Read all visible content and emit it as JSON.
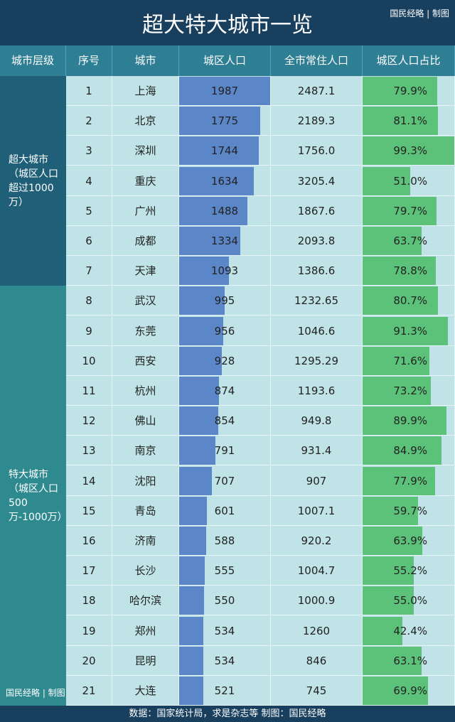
{
  "title": "超大特大城市一览",
  "brand": "国民经略 | 制图",
  "footer": "数据：国家统计局，求是杂志等  制图：国民经略",
  "colors": {
    "header": "#183f5e",
    "column_header": "#2e7e94",
    "tier1": "#1f5f78",
    "tier2": "#2f8a90",
    "urban_bar": "#5b87c8",
    "ratio_bar": "#5cc27a",
    "cell": "#bfe3e6"
  },
  "chart_data": {
    "type": "table",
    "columns": [
      "城市层级",
      "序号",
      "城市",
      "城区人口",
      "全市常住人口",
      "城区人口占比"
    ],
    "tiers": [
      {
        "label": "超大城市（城区人口超过1000万）",
        "rows": [
          1,
          7
        ]
      },
      {
        "label": "特大城市（城区人口500万-1000万）",
        "rows": [
          8,
          21
        ]
      }
    ],
    "rows": [
      {
        "no": "1",
        "city": "上海",
        "urban": "1987",
        "total": "2487.1",
        "ratio": "79.9%"
      },
      {
        "no": "2",
        "city": "北京",
        "urban": "1775",
        "total": "2189.3",
        "ratio": "81.1%"
      },
      {
        "no": "3",
        "city": "深圳",
        "urban": "1744",
        "total": "1756.0",
        "ratio": "99.3%"
      },
      {
        "no": "4",
        "city": "重庆",
        "urban": "1634",
        "total": "3205.4",
        "ratio": "51.0%"
      },
      {
        "no": "5",
        "city": "广州",
        "urban": "1488",
        "total": "1867.6",
        "ratio": "79.7%"
      },
      {
        "no": "6",
        "city": "成都",
        "urban": "1334",
        "total": "2093.8",
        "ratio": "63.7%"
      },
      {
        "no": "7",
        "city": "天津",
        "urban": "1093",
        "total": "1386.6",
        "ratio": "78.8%"
      },
      {
        "no": "8",
        "city": "武汉",
        "urban": "995",
        "total": "1232.65",
        "ratio": "80.7%"
      },
      {
        "no": "9",
        "city": "东莞",
        "urban": "956",
        "total": "1046.6",
        "ratio": "91.3%"
      },
      {
        "no": "10",
        "city": "西安",
        "urban": "928",
        "total": "1295.29",
        "ratio": "71.6%"
      },
      {
        "no": "11",
        "city": "杭州",
        "urban": "874",
        "total": "1193.6",
        "ratio": "73.2%"
      },
      {
        "no": "12",
        "city": "佛山",
        "urban": "854",
        "total": "949.8",
        "ratio": "89.9%"
      },
      {
        "no": "13",
        "city": "南京",
        "urban": "791",
        "total": "931.4",
        "ratio": "84.9%"
      },
      {
        "no": "14",
        "city": "沈阳",
        "urban": "707",
        "total": "907",
        "ratio": "77.9%"
      },
      {
        "no": "15",
        "city": "青岛",
        "urban": "601",
        "total": "1007.1",
        "ratio": "59.7%"
      },
      {
        "no": "16",
        "city": "济南",
        "urban": "588",
        "total": "920.2",
        "ratio": "63.9%"
      },
      {
        "no": "17",
        "city": "长沙",
        "urban": "555",
        "total": "1004.7",
        "ratio": "55.2%"
      },
      {
        "no": "18",
        "city": "哈尔滨",
        "urban": "550",
        "total": "1000.9",
        "ratio": "55.0%"
      },
      {
        "no": "19",
        "city": "郑州",
        "urban": "534",
        "total": "1260",
        "ratio": "42.4%"
      },
      {
        "no": "20",
        "city": "昆明",
        "urban": "534",
        "total": "846",
        "ratio": "63.1%"
      },
      {
        "no": "21",
        "city": "大连",
        "urban": "521",
        "total": "745",
        "ratio": "69.9%"
      }
    ]
  }
}
